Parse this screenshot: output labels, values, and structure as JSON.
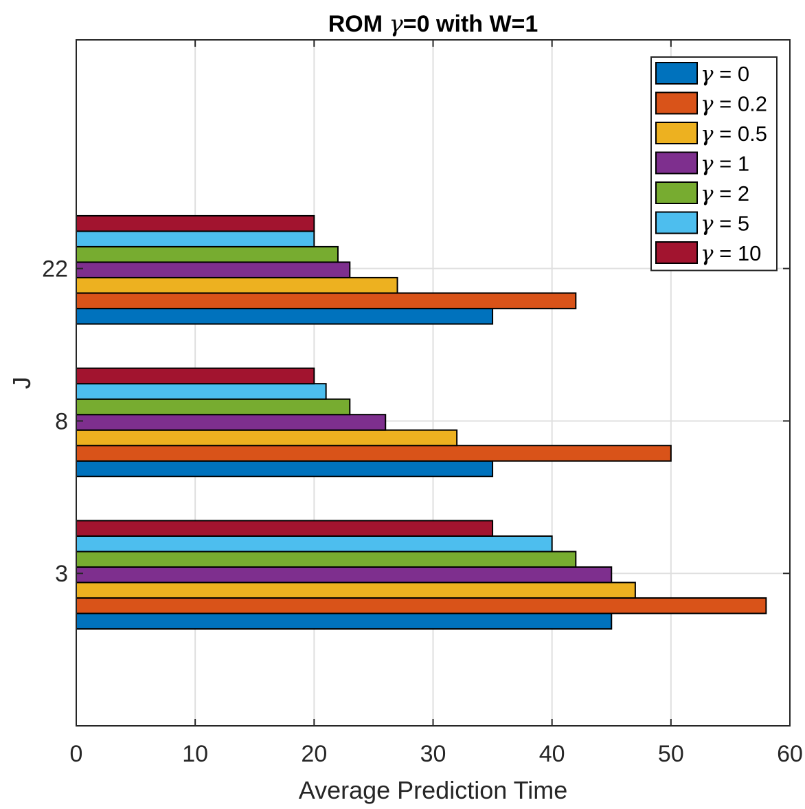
{
  "chart_data": {
    "type": "bar",
    "orientation": "horizontal",
    "title_prefix": "ROM ",
    "title_symbol": "γ",
    "title_suffix": "=0 with W=1",
    "xlabel": "Average Prediction Time",
    "ylabel": "J",
    "xlim": [
      0,
      60
    ],
    "xticks": [
      0,
      10,
      20,
      30,
      40,
      50,
      60
    ],
    "categories": [
      "3",
      "8",
      "22"
    ],
    "grid": true,
    "legend_position": "top-right",
    "series": [
      {
        "name": "γ = 0",
        "symbol": "γ",
        "label": " = 0",
        "color": "#0072BD",
        "values": [
          45,
          35,
          35
        ]
      },
      {
        "name": "γ = 0.2",
        "symbol": "γ",
        "label": " = 0.2",
        "color": "#D95319",
        "values": [
          58,
          50,
          42
        ]
      },
      {
        "name": "γ = 0.5",
        "symbol": "γ",
        "label": " = 0.5",
        "color": "#EDB120",
        "values": [
          47,
          32,
          27
        ]
      },
      {
        "name": "γ = 1",
        "symbol": "γ",
        "label": " = 1",
        "color": "#7E2F8E",
        "values": [
          45,
          26,
          23
        ]
      },
      {
        "name": "γ = 2",
        "symbol": "γ",
        "label": " = 2",
        "color": "#77AC30",
        "values": [
          42,
          23,
          22
        ]
      },
      {
        "name": "γ = 5",
        "symbol": "γ",
        "label": " = 5",
        "color": "#4DBEEE",
        "values": [
          40,
          21,
          20
        ]
      },
      {
        "name": "γ = 10",
        "symbol": "γ",
        "label": " = 10",
        "color": "#A2142F",
        "values": [
          35,
          20,
          20
        ]
      }
    ]
  }
}
